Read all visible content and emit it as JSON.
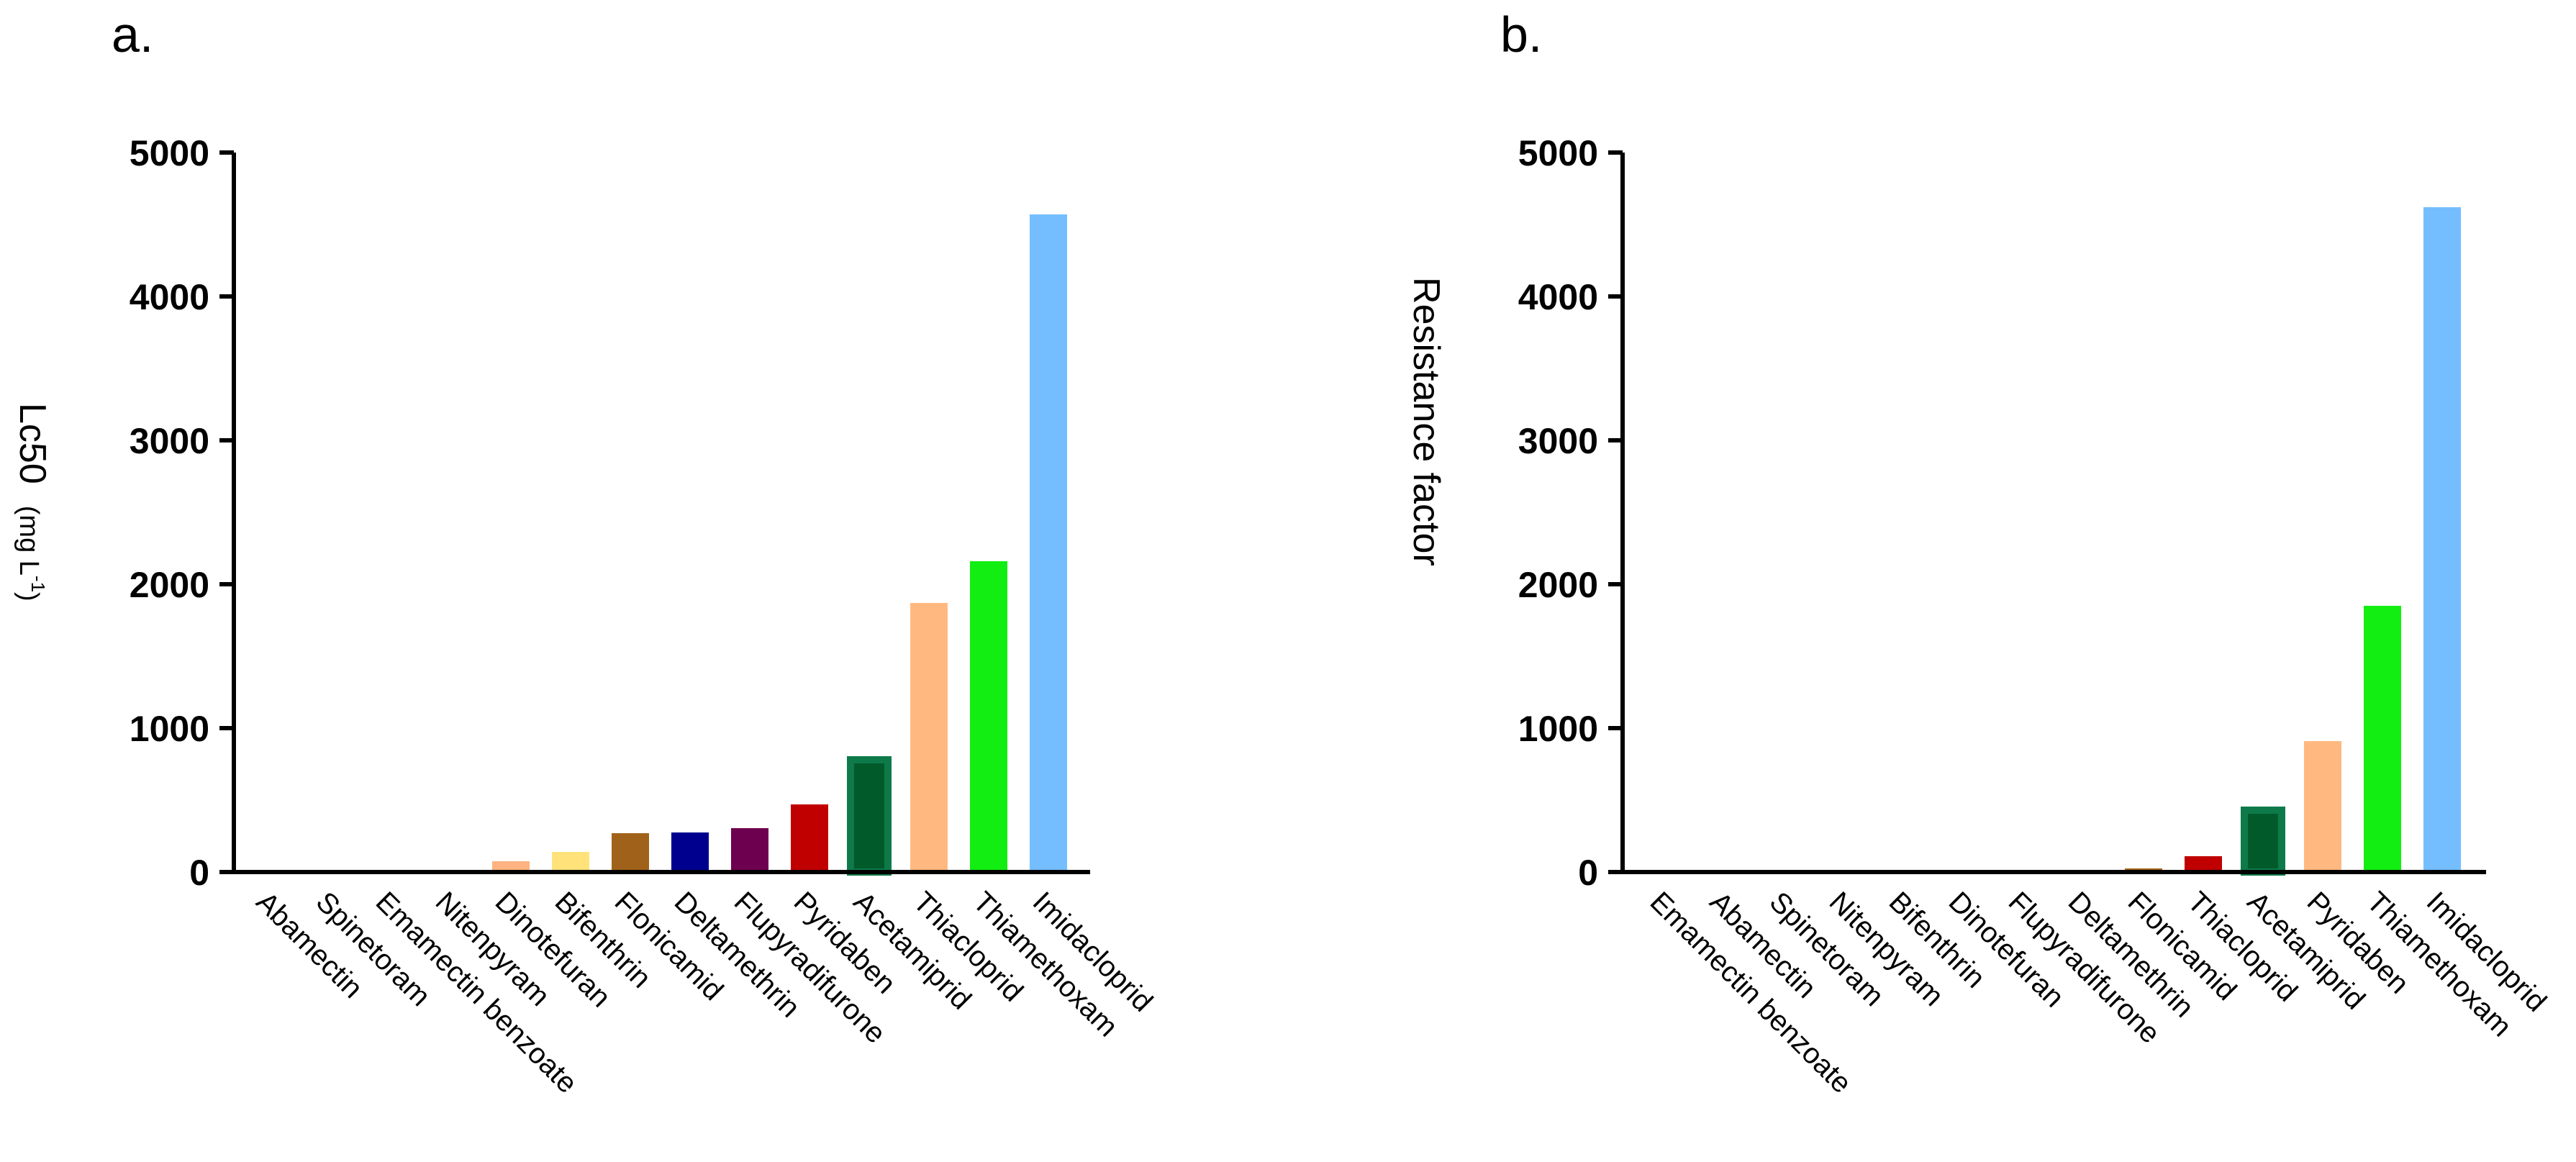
{
  "chart_data": [
    {
      "type": "bar",
      "panel_label": "a.",
      "ylabel": {
        "main": "Lc50",
        "unit": "(mg L",
        "sup": "-1",
        "close": ")"
      },
      "yticks": [
        "0",
        "1000",
        "2000",
        "3000",
        "4000",
        "5000"
      ],
      "ylim": [
        0,
        5000
      ],
      "categories": [
        "Abamectin",
        "Spinetoram",
        "Emamectin benzoate",
        "Nitenpyram",
        "Dinotefuran",
        "Bifenthrin",
        "Flonicamid",
        "Deltamethrin",
        "Flupyradifurone",
        "Pyridaben",
        "Acetamiprid",
        "Thiacloprid",
        "Thiamethoxam",
        "Imidacloprid"
      ],
      "values": [
        1,
        1,
        1,
        3,
        75,
        140,
        270,
        275,
        305,
        470,
        780,
        1870,
        2160,
        4570
      ],
      "colors": [
        "#7aa7ff",
        "#7aa7ff",
        "#7aa7ff",
        "#ffd77a",
        "#ffb380",
        "#ffe27a",
        "#a0621a",
        "#00008f",
        "#6e0050",
        "#c00000",
        "#005a2a",
        "#ffb980",
        "#12ee12",
        "#74beff"
      ],
      "edge_colors": [
        "",
        "",
        "",
        "",
        "",
        "",
        "",
        "",
        "",
        "",
        "#0e7a4a",
        "",
        "",
        ""
      ]
    },
    {
      "type": "bar",
      "panel_label": "b.",
      "ylabel": "Resistance factor",
      "yticks": [
        "0",
        "1000",
        "2000",
        "3000",
        "4000",
        "5000"
      ],
      "ylim": [
        0,
        5000
      ],
      "categories": [
        "Emamectin benzoate",
        "Abamectin",
        "Spinetoram",
        "Nitenpyram",
        "Bifenthrin",
        "Dinotefuran",
        "Flupyradifurone",
        "Deltamethrin",
        "Flonicamid",
        "Thiacloprid",
        "Acetamiprid",
        "Pyridaben",
        "Thiamethoxam",
        "Imidacloprid"
      ],
      "values": [
        0.5,
        1,
        1,
        2,
        3,
        4,
        6,
        15,
        25,
        110,
        430,
        910,
        1850,
        4620
      ],
      "colors": [
        "#7aa7ff",
        "#7aa7ff",
        "#7aa7ff",
        "#ffd77a",
        "#ffe27a",
        "#ffb380",
        "#6e0050",
        "#00008f",
        "#a0621a",
        "#c00000",
        "#005a2a",
        "#ffb980",
        "#12ee12",
        "#74beff"
      ],
      "edge_colors": [
        "",
        "",
        "",
        "",
        "",
        "",
        "",
        "",
        "",
        "",
        "#0e7a4a",
        "",
        "",
        ""
      ]
    }
  ]
}
